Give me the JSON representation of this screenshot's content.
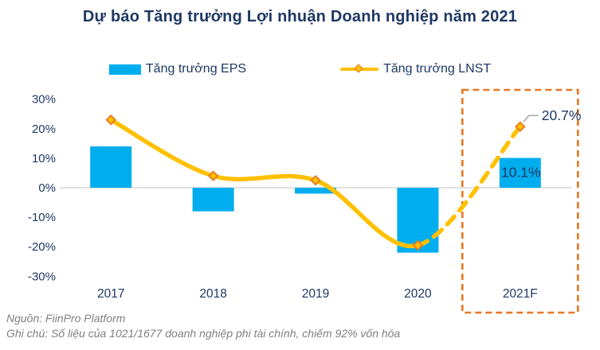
{
  "title": "Dự báo Tăng trưởng Lợi nhuận Doanh nghiệp năm 2021",
  "legend": {
    "position": "top",
    "items": [
      {
        "label": "Tăng trưởng EPS",
        "type": "bar"
      },
      {
        "label": "Tăng trưởng LNST",
        "type": "line"
      }
    ]
  },
  "chart_data": {
    "type": "bar+line",
    "categories": [
      "2017",
      "2018",
      "2019",
      "2020",
      "2021F"
    ],
    "series": [
      {
        "name": "Tăng trưởng EPS",
        "type": "bar",
        "values": [
          14,
          -8,
          -2,
          -22,
          10.1
        ]
      },
      {
        "name": "Tăng trưởng LNST",
        "type": "line",
        "values": [
          23,
          4,
          2.5,
          -19.5,
          20.7
        ],
        "dashed_from_index": 3
      }
    ],
    "ylim": [
      -30,
      30
    ],
    "yticks": [
      30,
      20,
      10,
      0,
      -10,
      -20,
      -30
    ],
    "ytick_suffix": "%",
    "grid": "zero-line-only",
    "legend_position": "top",
    "annotations": [
      {
        "target": "line",
        "category_index": 4,
        "text": "20.7%"
      },
      {
        "target": "bar",
        "category_index": 4,
        "text": "10.1%"
      }
    ],
    "highlight": {
      "category_index": 4,
      "style": "dashed-box"
    }
  },
  "colors": {
    "bar": "#00AEEF",
    "line": "#FFC000",
    "marker_fill": "#FFC000",
    "marker_stroke": "#E87722",
    "highlight_box": "#E87722",
    "navy_text": "#1F3864",
    "axis_line": "#D9D9D9",
    "leader_line": "#A6A6A6",
    "footer_text": "#808080"
  },
  "footer": {
    "source": "Nguồn: FiinPro Platform",
    "note": "Ghi chú: Số liệu của 1021/1677 doanh nghiệp phi tài chính, chiếm 92% vốn hóa"
  }
}
